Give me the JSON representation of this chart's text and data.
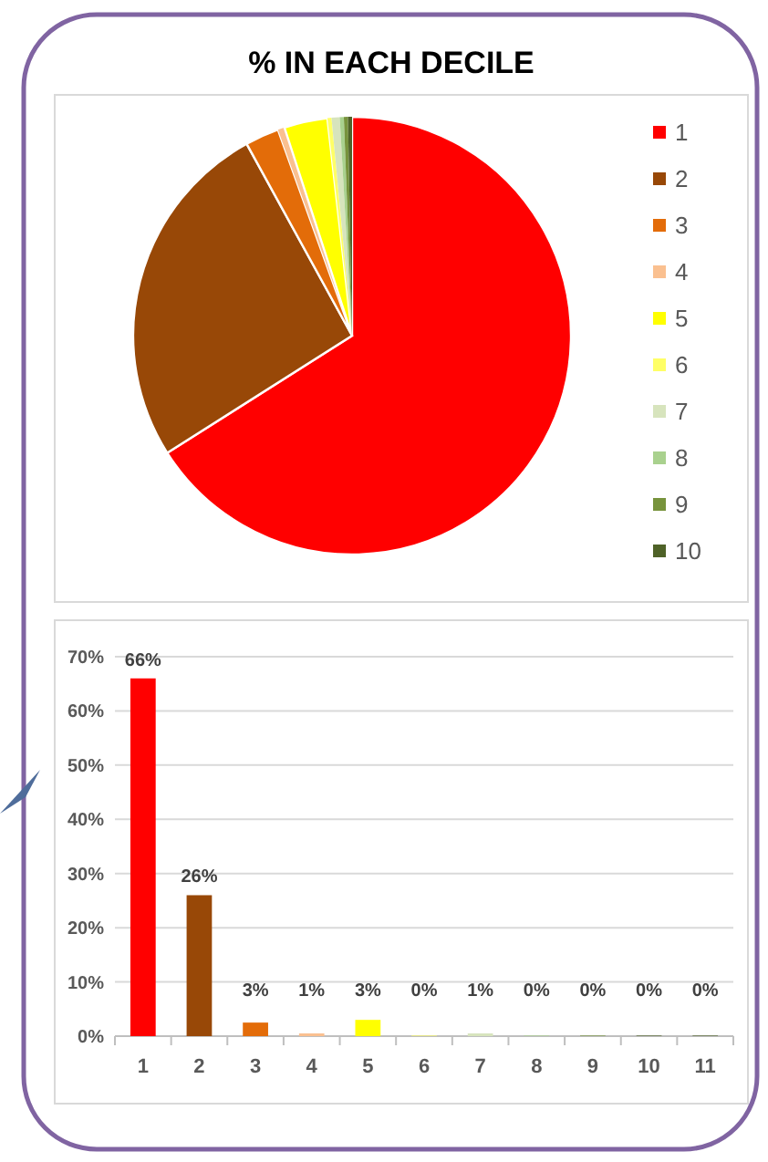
{
  "chart_data": [
    {
      "type": "pie",
      "title": "% IN EACH DECILE",
      "categories": [
        "1",
        "2",
        "3",
        "4",
        "5",
        "6",
        "7",
        "8",
        "9",
        "10"
      ],
      "values": [
        66,
        26,
        2.5,
        0.5,
        3.2,
        0.3,
        0.6,
        0.3,
        0.3,
        0.3
      ],
      "colors": [
        "#ff0000",
        "#984807",
        "#e36c09",
        "#fac090",
        "#ffff00",
        "#ffff66",
        "#d7e4bd",
        "#a9d18e",
        "#77933c",
        "#4f6228"
      ],
      "legend": "right"
    },
    {
      "type": "bar",
      "categories": [
        "1",
        "2",
        "3",
        "4",
        "5",
        "6",
        "7",
        "8",
        "9",
        "10",
        "11"
      ],
      "values": [
        66,
        26,
        2.5,
        0.5,
        3,
        0.1,
        0.5,
        0.1,
        0.1,
        0.1,
        0.1
      ],
      "colors": [
        "#ff0000",
        "#984807",
        "#e36c09",
        "#fac090",
        "#ffff00",
        "#ffff66",
        "#d7e4bd",
        "#a9d18e",
        "#77933c",
        "#4f6228",
        "#4f6228"
      ],
      "value_labels": [
        "66%",
        "26%",
        "3%",
        "1%",
        "3%",
        "0%",
        "1%",
        "0%",
        "0%",
        "0%",
        "0%"
      ],
      "ylim": [
        0,
        70
      ],
      "yticks": [
        {
          "value": 0,
          "label": "0%"
        },
        {
          "value": 10,
          "label": "10%"
        },
        {
          "value": 20,
          "label": "20%"
        },
        {
          "value": 30,
          "label": "30%"
        },
        {
          "value": 40,
          "label": "40%"
        },
        {
          "value": 50,
          "label": "50%"
        },
        {
          "value": 60,
          "label": "60%"
        },
        {
          "value": 70,
          "label": "70%"
        }
      ],
      "grid": "y"
    }
  ]
}
